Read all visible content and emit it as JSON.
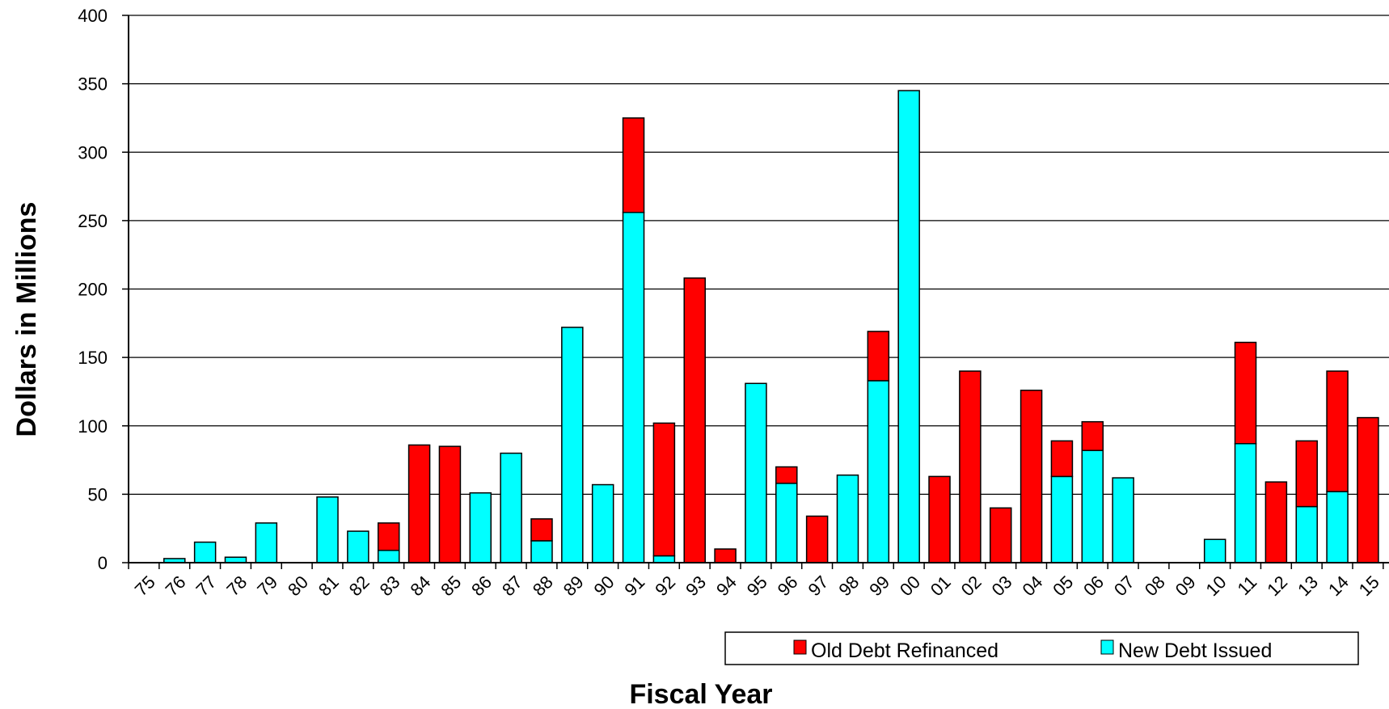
{
  "chart_data": {
    "type": "bar",
    "stacked": true,
    "title": "",
    "xlabel": "Fiscal Year",
    "ylabel": "Dollars in Millions",
    "ylim": [
      0,
      400
    ],
    "yticks": [
      0,
      50,
      100,
      150,
      200,
      250,
      300,
      350,
      400
    ],
    "grid": true,
    "legend_position": "bottom-right",
    "categories": [
      "75",
      "76",
      "77",
      "78",
      "79",
      "80",
      "81",
      "82",
      "83",
      "84",
      "85",
      "86",
      "87",
      "88",
      "89",
      "90",
      "91",
      "92",
      "93",
      "94",
      "95",
      "96",
      "97",
      "98",
      "99",
      "00",
      "01",
      "02",
      "03",
      "04",
      "05",
      "06",
      "07",
      "08",
      "09",
      "10",
      "11",
      "12",
      "13",
      "14",
      "15"
    ],
    "series": [
      {
        "name": "New Debt Issued",
        "color": "#00FFFF",
        "values": [
          0,
          3,
          15,
          4,
          29,
          0,
          48,
          23,
          9,
          0,
          0,
          51,
          80,
          16,
          172,
          57,
          256,
          5,
          0,
          0,
          131,
          58,
          0,
          64,
          133,
          345,
          0,
          0,
          0,
          0,
          63,
          82,
          62,
          0,
          0,
          17,
          87,
          0,
          41,
          52,
          0
        ]
      },
      {
        "name": "Old Debt Refinanced",
        "color": "#FF0000",
        "values": [
          0,
          0,
          0,
          0,
          0,
          0,
          0,
          0,
          20,
          86,
          85,
          0,
          0,
          16,
          0,
          0,
          69,
          97,
          208,
          10,
          0,
          12,
          34,
          0,
          36,
          0,
          63,
          140,
          40,
          126,
          26,
          21,
          0,
          0,
          0,
          0,
          74,
          59,
          48,
          88,
          106
        ]
      }
    ],
    "legend": {
      "entries": [
        {
          "label": "Old Debt Refinanced",
          "color": "#FF0000"
        },
        {
          "label": "New Debt Issued",
          "color": "#00FFFF"
        }
      ]
    }
  }
}
